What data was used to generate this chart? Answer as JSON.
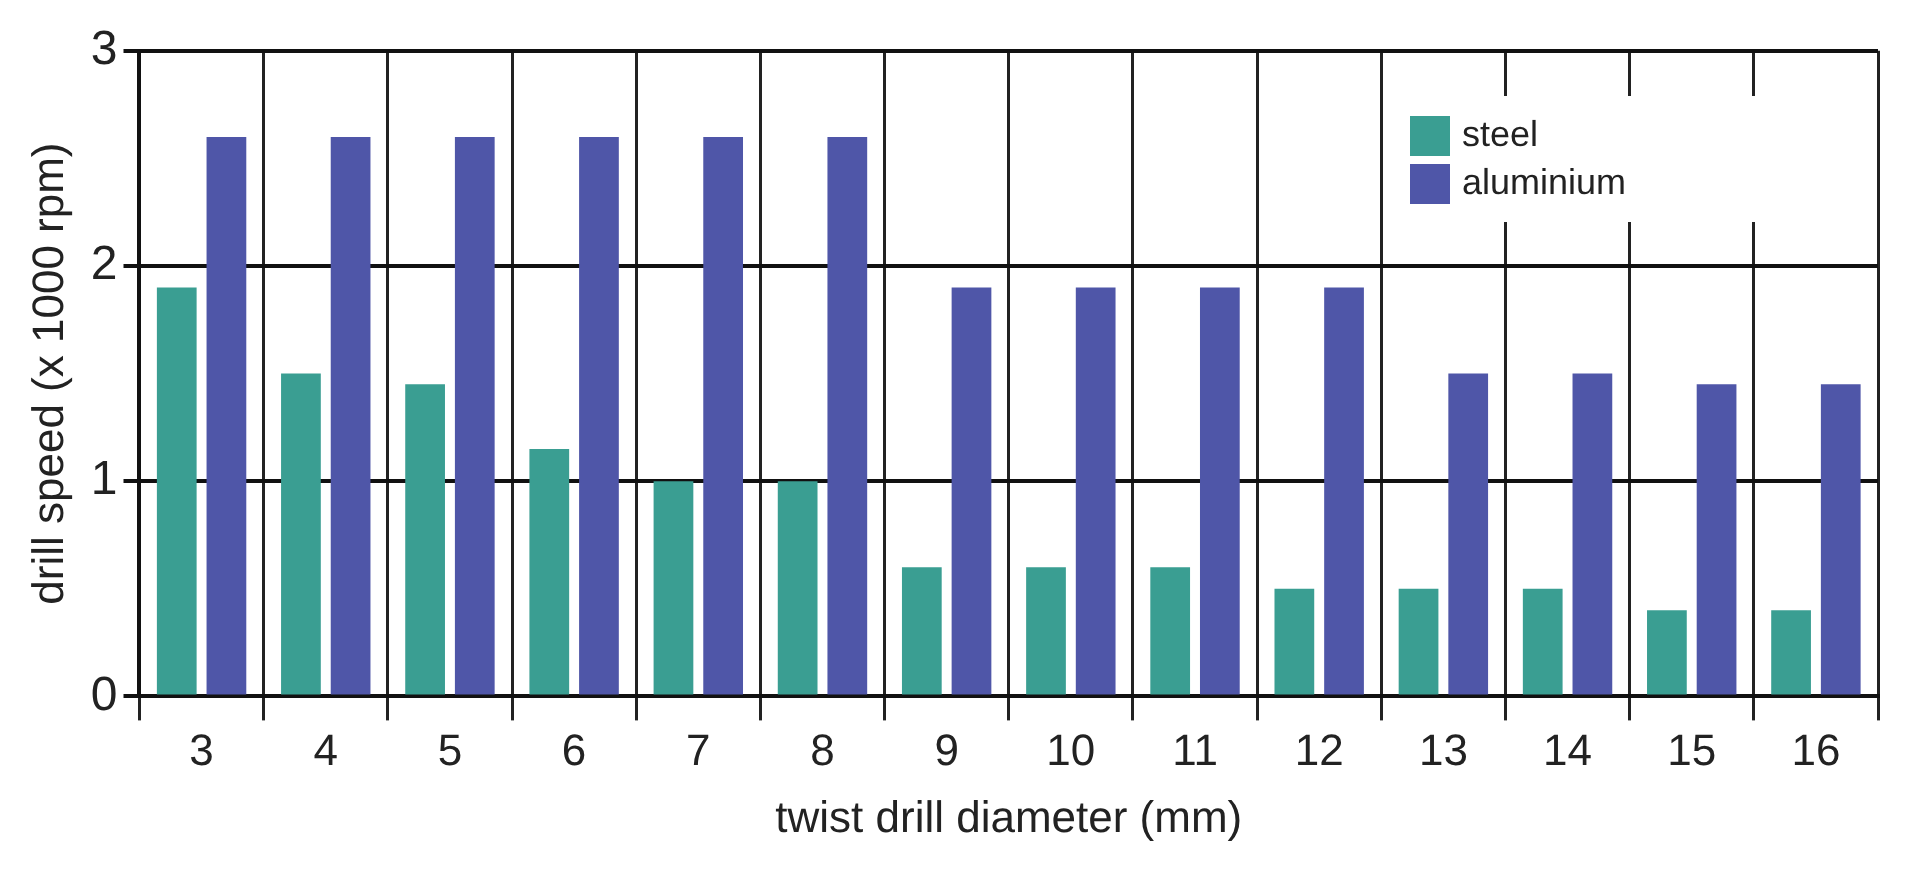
{
  "chart_data": {
    "type": "bar",
    "xlabel": "twist drill diameter (mm)",
    "ylabel": "drill speed (x 1000 rpm)",
    "categories": [
      "3",
      "4",
      "5",
      "6",
      "7",
      "8",
      "9",
      "10",
      "11",
      "12",
      "13",
      "14",
      "15",
      "16"
    ],
    "series": [
      {
        "name": "steel",
        "color": "#3a9e92",
        "values": [
          1.9,
          1.5,
          1.45,
          1.15,
          1.0,
          1.0,
          0.6,
          0.6,
          0.6,
          0.5,
          0.5,
          0.5,
          0.4,
          0.4
        ]
      },
      {
        "name": "aluminium",
        "color": "#4f56a8",
        "values": [
          2.6,
          2.6,
          2.6,
          2.6,
          2.6,
          2.6,
          1.9,
          1.9,
          1.9,
          1.9,
          1.5,
          1.5,
          1.45,
          1.45
        ]
      }
    ],
    "ylim": [
      0,
      3
    ],
    "yticks": [
      0,
      1,
      2,
      3
    ],
    "grid": true,
    "legend": "top right"
  }
}
